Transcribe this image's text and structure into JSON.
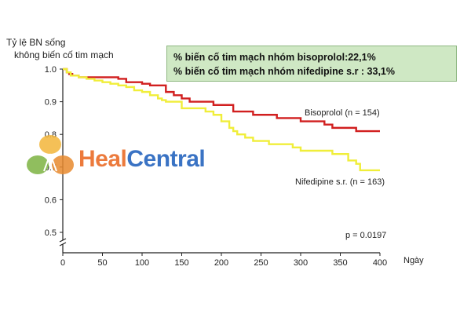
{
  "chart_data": {
    "type": "line",
    "ylabel_lines": [
      "Tỷ lệ BN sống",
      "không biến cố tim mạch"
    ],
    "xlabel": "Ngày",
    "xlim": [
      0,
      400
    ],
    "ylim": [
      0.45,
      1.0
    ],
    "x_ticks": [
      0,
      50,
      100,
      150,
      200,
      250,
      300,
      350,
      400
    ],
    "y_ticks": [
      0.5,
      0.6,
      0.7,
      0.8,
      0.9,
      1.0
    ],
    "series": [
      {
        "name": "Bisoprolol (n = 154)",
        "color": "#d11f1f",
        "x": [
          0,
          5,
          8,
          12,
          20,
          30,
          40,
          50,
          60,
          70,
          80,
          90,
          100,
          110,
          125,
          130,
          140,
          150,
          160,
          180,
          190,
          210,
          215,
          230,
          240,
          260,
          270,
          300,
          305,
          330,
          340,
          360,
          370,
          390,
          400
        ],
        "y": [
          1.0,
          0.99,
          0.985,
          0.98,
          0.975,
          0.975,
          0.975,
          0.975,
          0.975,
          0.97,
          0.96,
          0.96,
          0.955,
          0.95,
          0.95,
          0.93,
          0.92,
          0.91,
          0.9,
          0.9,
          0.89,
          0.89,
          0.87,
          0.87,
          0.86,
          0.86,
          0.85,
          0.84,
          0.84,
          0.83,
          0.82,
          0.82,
          0.81,
          0.81,
          0.81
        ]
      },
      {
        "name": "Nifedipine s.r. (n = 163)",
        "color": "#f0ee3a",
        "x": [
          0,
          5,
          10,
          20,
          30,
          40,
          50,
          60,
          70,
          80,
          90,
          100,
          110,
          120,
          125,
          130,
          150,
          180,
          190,
          200,
          210,
          215,
          220,
          230,
          240,
          260,
          290,
          300,
          320,
          340,
          360,
          370,
          375,
          400
        ],
        "y": [
          1.0,
          0.99,
          0.98,
          0.975,
          0.97,
          0.965,
          0.96,
          0.955,
          0.95,
          0.945,
          0.935,
          0.93,
          0.92,
          0.91,
          0.905,
          0.9,
          0.88,
          0.87,
          0.86,
          0.84,
          0.82,
          0.81,
          0.8,
          0.79,
          0.78,
          0.77,
          0.76,
          0.75,
          0.75,
          0.74,
          0.72,
          0.71,
          0.69,
          0.69
        ]
      }
    ],
    "annotations": {
      "box_lines": [
        "% biến cố tim mạch nhóm bisoprolol:22,1%",
        "% biến cố tim mạch nhóm nifedipine s.r : 33,1%"
      ],
      "p_value": "p = 0.0197"
    },
    "grid": false,
    "legend": "inline labels"
  },
  "watermark": {
    "part1": "Heal",
    "part2": "Central"
  }
}
